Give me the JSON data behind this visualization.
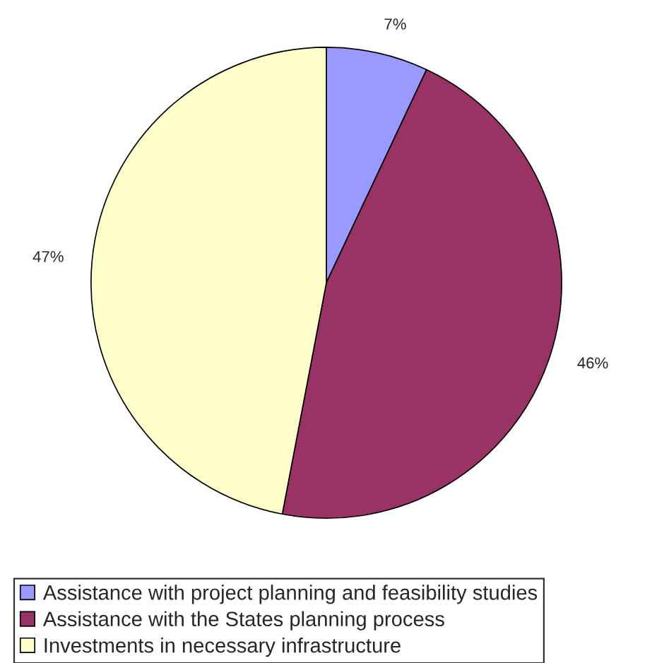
{
  "chart_data": {
    "type": "pie",
    "categories": [
      "Assistance with project planning and feasibility studies",
      "Assistance with the States planning process",
      "Investments in necessary infrastructure"
    ],
    "values": [
      7,
      46,
      47
    ],
    "value_labels": [
      "7%",
      "46%",
      "47%"
    ],
    "colors": [
      "#9999ff",
      "#993366",
      "#ffffcc"
    ],
    "legend": "bottom"
  }
}
